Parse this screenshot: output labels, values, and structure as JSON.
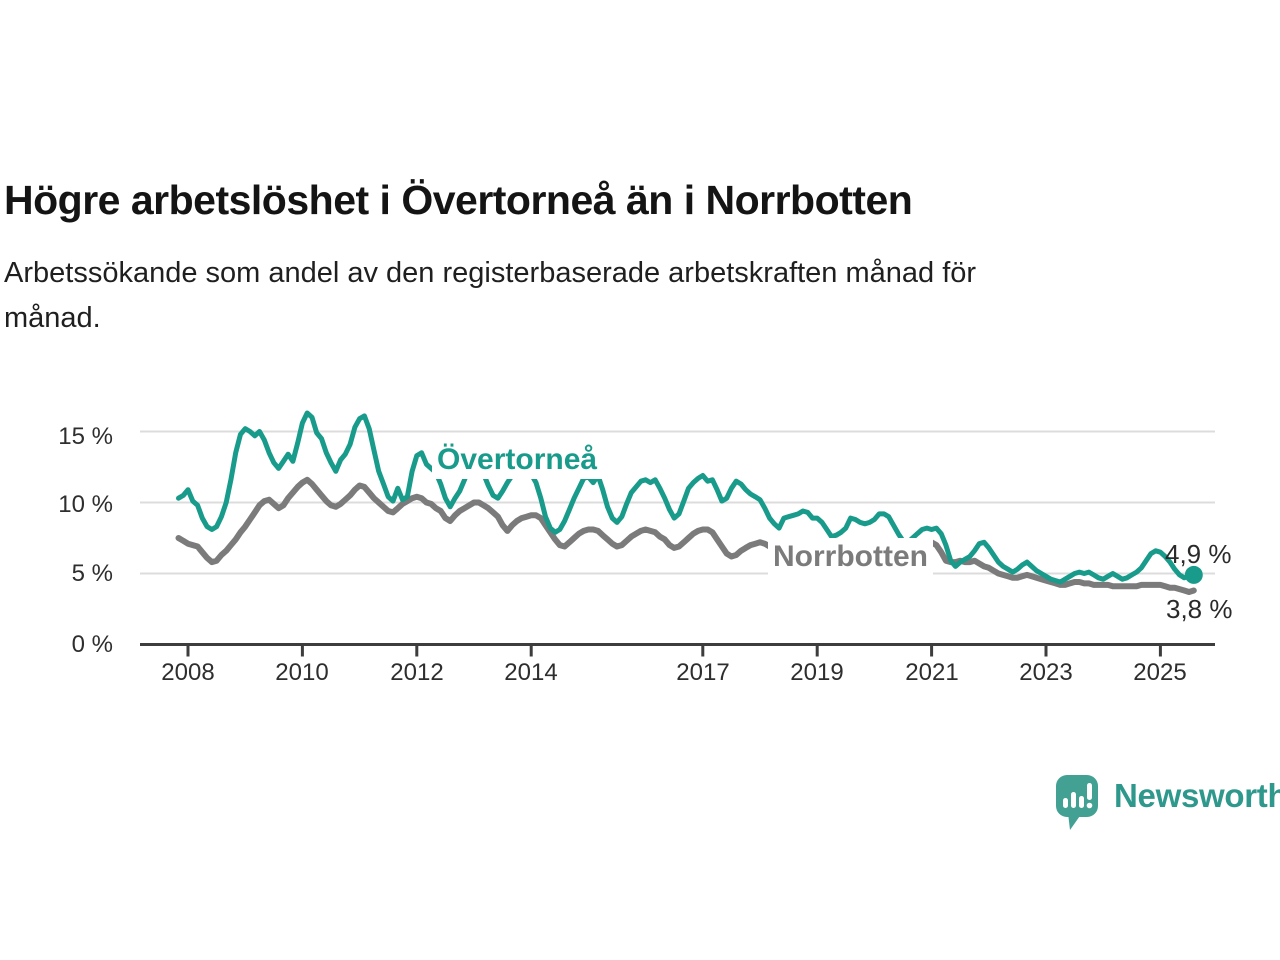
{
  "header": {
    "title": "Högre arbetslöshet i Övertorneå än i Norrbotten",
    "subtitle_line1": "Arbetssökande som andel av den registerbaserade arbetskraften månad för",
    "subtitle_line2": "månad."
  },
  "footer": {
    "brand": "Newsworthy",
    "brand_color": "#2f988c",
    "logo_icon": "newsworthy-speech-bubble-bar-chart"
  },
  "chart_data": {
    "type": "line",
    "title": "Högre arbetslöshet i Övertorneå än i Norrbotten",
    "xlabel": "",
    "ylabel": "",
    "frequency": "monthly",
    "x_start": "2007-11",
    "x_end": "2025-08",
    "ylim": [
      0,
      17
    ],
    "grid": "horizontal",
    "legend_position": "inline-labels",
    "y_ticks": [
      {
        "value": 0,
        "label": "0 %"
      },
      {
        "value": 5,
        "label": "5 %"
      },
      {
        "value": 10,
        "label": "10 %"
      },
      {
        "value": 15,
        "label": "15 %"
      }
    ],
    "x_ticks": [
      {
        "year": 2008,
        "label": "2008"
      },
      {
        "year": 2010,
        "label": "2010"
      },
      {
        "year": 2012,
        "label": "2012"
      },
      {
        "year": 2014,
        "label": "2014"
      },
      {
        "year": 2017,
        "label": "2017"
      },
      {
        "year": 2019,
        "label": "2019"
      },
      {
        "year": 2021,
        "label": "2021"
      },
      {
        "year": 2023,
        "label": "2023"
      },
      {
        "year": 2025,
        "label": "2025"
      }
    ],
    "series": [
      {
        "name": "Övertorneå",
        "color": "#189b8b",
        "end_dot": true,
        "values": [
          10.3,
          10.5,
          10.9,
          10.1,
          9.8,
          8.9,
          8.3,
          8.1,
          8.3,
          9.0,
          10.0,
          11.6,
          13.5,
          14.8,
          15.2,
          15.0,
          14.7,
          15.0,
          14.4,
          13.5,
          12.8,
          12.4,
          12.9,
          13.4,
          12.9,
          14.2,
          15.6,
          16.3,
          16.0,
          14.9,
          14.5,
          13.5,
          12.8,
          12.2,
          13.0,
          13.4,
          14.1,
          15.3,
          15.9,
          16.1,
          15.2,
          13.7,
          12.2,
          11.3,
          10.4,
          10.1,
          11.0,
          10.2,
          10.4,
          12.2,
          13.3,
          13.5,
          12.7,
          12.4,
          12.1,
          11.3,
          10.3,
          9.7,
          10.3,
          10.8,
          11.6,
          12.4,
          12.7,
          12.3,
          12.0,
          11.2,
          10.5,
          10.3,
          10.8,
          11.4,
          11.9,
          12.0,
          11.9,
          12.1,
          12.0,
          11.4,
          10.3,
          9.0,
          8.2,
          7.9,
          8.1,
          8.7,
          9.5,
          10.3,
          11.0,
          11.7,
          11.8,
          11.4,
          11.9,
          10.9,
          9.7,
          8.9,
          8.6,
          9.0,
          9.9,
          10.7,
          11.1,
          11.5,
          11.6,
          11.4,
          11.6,
          11.0,
          10.3,
          9.5,
          8.9,
          9.2,
          10.1,
          11.0,
          11.4,
          11.7,
          11.9,
          11.5,
          11.6,
          10.9,
          10.1,
          10.3,
          11.0,
          11.5,
          11.3,
          10.9,
          10.6,
          10.4,
          10.2,
          9.6,
          8.9,
          8.5,
          8.2,
          8.9,
          9.0,
          9.1,
          9.2,
          9.4,
          9.3,
          8.9,
          8.9,
          8.6,
          8.1,
          7.6,
          7.7,
          7.9,
          8.2,
          8.9,
          8.8,
          8.6,
          8.5,
          8.6,
          8.8,
          9.2,
          9.2,
          9.0,
          8.4,
          7.8,
          7.3,
          7.2,
          7.5,
          7.8,
          8.1,
          8.2,
          8.1,
          8.2,
          7.8,
          7.0,
          5.9,
          5.5,
          5.8,
          6.0,
          6.2,
          6.6,
          7.1,
          7.2,
          6.8,
          6.3,
          5.8,
          5.5,
          5.3,
          5.1,
          5.3,
          5.6,
          5.8,
          5.5,
          5.2,
          5.0,
          4.8,
          4.6,
          4.5,
          4.4,
          4.6,
          4.8,
          5.0,
          5.1,
          5.0,
          5.1,
          4.9,
          4.7,
          4.6,
          4.8,
          5.0,
          4.8,
          4.6,
          4.7,
          4.9,
          5.1,
          5.4,
          5.9,
          6.4,
          6.6,
          6.5,
          6.2,
          5.8,
          5.3,
          4.9,
          4.7,
          4.8,
          4.9
        ]
      },
      {
        "name": "Norrbotten",
        "color": "#7b7b7b",
        "end_dot": false,
        "values": [
          7.5,
          7.3,
          7.1,
          7.0,
          6.9,
          6.5,
          6.1,
          5.8,
          5.9,
          6.3,
          6.6,
          7.0,
          7.4,
          7.9,
          8.3,
          8.8,
          9.3,
          9.8,
          10.1,
          10.2,
          9.9,
          9.6,
          9.8,
          10.3,
          10.7,
          11.1,
          11.4,
          11.6,
          11.3,
          10.9,
          10.5,
          10.1,
          9.8,
          9.7,
          9.9,
          10.2,
          10.5,
          10.9,
          11.2,
          11.1,
          10.7,
          10.3,
          10.0,
          9.7,
          9.4,
          9.3,
          9.6,
          9.9,
          10.1,
          10.3,
          10.4,
          10.3,
          10.0,
          9.9,
          9.6,
          9.4,
          8.9,
          8.7,
          9.1,
          9.4,
          9.6,
          9.8,
          10.0,
          10.0,
          9.8,
          9.6,
          9.3,
          9.0,
          8.4,
          8.0,
          8.4,
          8.7,
          8.9,
          9.0,
          9.1,
          9.1,
          8.9,
          8.4,
          7.9,
          7.4,
          7.0,
          6.9,
          7.2,
          7.5,
          7.8,
          8.0,
          8.1,
          8.1,
          8.0,
          7.7,
          7.4,
          7.1,
          6.9,
          7.0,
          7.3,
          7.6,
          7.8,
          8.0,
          8.1,
          8.0,
          7.9,
          7.6,
          7.4,
          7.0,
          6.8,
          6.9,
          7.2,
          7.5,
          7.8,
          8.0,
          8.1,
          8.1,
          7.9,
          7.4,
          6.9,
          6.4,
          6.2,
          6.3,
          6.6,
          6.8,
          7.0,
          7.1,
          7.2,
          7.1,
          6.9,
          6.6,
          6.3,
          6.1,
          6.0,
          6.1,
          6.2,
          6.3,
          6.4,
          6.5,
          6.6,
          6.5,
          6.4,
          6.2,
          6.1,
          6.1,
          6.2,
          6.2,
          6.3,
          6.4,
          6.5,
          6.6,
          6.7,
          6.8,
          7.0,
          7.1,
          7.1,
          7.0,
          7.0,
          7.0,
          7.0,
          7.1,
          7.1,
          7.2,
          7.2,
          7.0,
          6.5,
          5.9,
          5.8,
          5.8,
          5.9,
          5.8,
          5.8,
          5.9,
          5.7,
          5.5,
          5.4,
          5.2,
          5.0,
          4.9,
          4.8,
          4.7,
          4.7,
          4.8,
          4.9,
          4.8,
          4.7,
          4.6,
          4.5,
          4.4,
          4.3,
          4.2,
          4.2,
          4.3,
          4.4,
          4.4,
          4.3,
          4.3,
          4.2,
          4.2,
          4.2,
          4.2,
          4.1,
          4.1,
          4.1,
          4.1,
          4.1,
          4.1,
          4.2,
          4.2,
          4.2,
          4.2,
          4.2,
          4.1,
          4.0,
          4.0,
          3.9,
          3.8,
          3.7,
          3.8
        ]
      }
    ],
    "end_labels": [
      {
        "series": "Övertorneå",
        "label": "4,9 %",
        "value": 4.9
      },
      {
        "series": "Norrbotten",
        "label": "3,8 %",
        "value": 3.8
      }
    ],
    "annotations_color": "#2a2a2a",
    "gridline_color": "#dcdcdc",
    "axis_color": "#3d3d3d"
  }
}
